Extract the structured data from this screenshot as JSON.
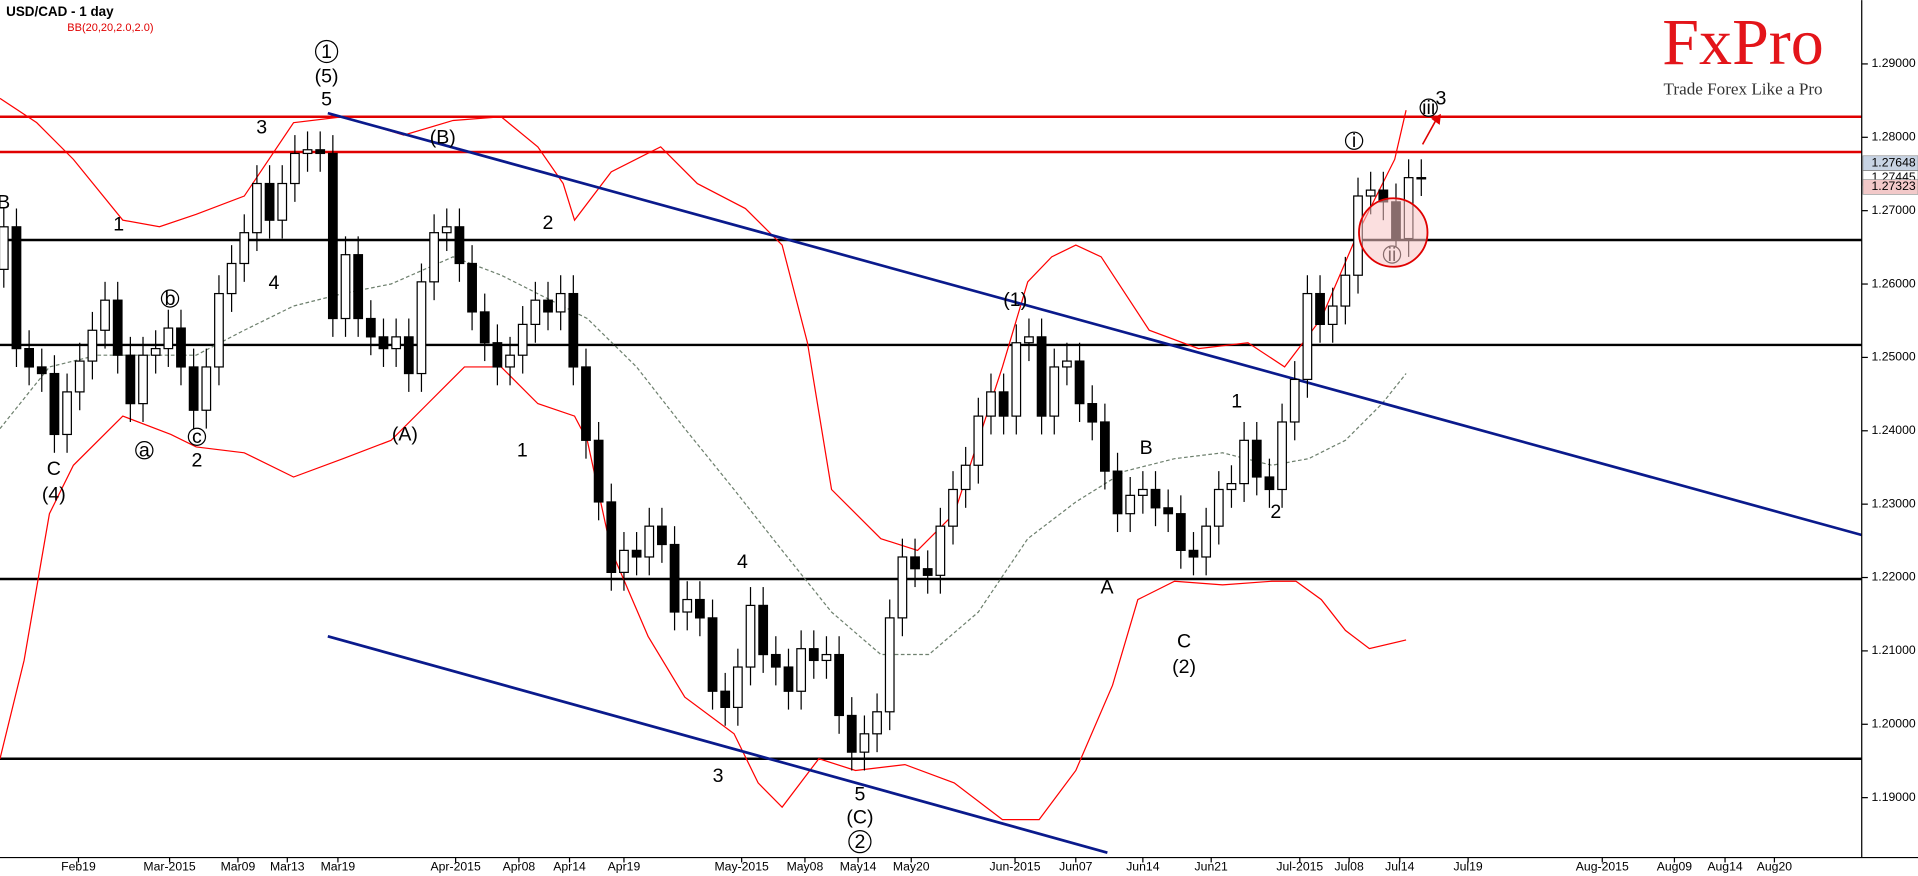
{
  "chart_data": {
    "type": "candlestick",
    "title": "USD/CAD - 1 day",
    "subtitle": "BB(20,20,2.0,2.0)",
    "logo": "FxPro",
    "tagline": "Trade Forex Like a Pro",
    "up_color": "#ffffff",
    "down_color": "#000000",
    "open": [
      1.262,
      1.2678,
      1.2512,
      1.2487,
      1.2478,
      1.2395,
      1.2453,
      1.2495,
      1.2537,
      1.2578,
      1.2503,
      1.2437,
      1.2503,
      1.2512,
      1.254,
      1.2487,
      1.2428,
      1.2487,
      1.2587,
      1.2628,
      1.267,
      1.2737,
      1.2687,
      1.2737,
      1.2778,
      1.2783,
      1.2778,
      1.2553,
      1.264,
      1.2553,
      1.2528,
      1.2512,
      1.2528,
      1.2478,
      1.2603,
      1.267,
      1.2678,
      1.2628,
      1.2562,
      1.252,
      1.2487,
      1.2503,
      1.2545,
      1.2578,
      1.2562,
      1.2587,
      1.2487,
      1.2387,
      1.2303,
      1.2207,
      1.2237,
      1.2228,
      1.227,
      1.2245,
      1.2153,
      1.217,
      1.2145,
      1.2045,
      1.2023,
      1.2078,
      1.2162,
      1.2095,
      1.2078,
      1.2045,
      1.2103,
      1.2087,
      1.2095,
      1.2012,
      1.1962,
      1.1987,
      1.2017,
      1.2145,
      1.2228,
      1.2212,
      1.2203,
      1.227,
      1.232,
      1.2353,
      1.242,
      1.2453,
      1.242,
      1.252,
      1.2528,
      1.242,
      1.2487,
      1.2495,
      1.2437,
      1.2412,
      1.2345,
      1.2287,
      1.2312,
      1.232,
      1.2295,
      1.2287,
      1.2237,
      1.2228,
      1.227,
      1.232,
      1.2328,
      1.2387,
      1.2337,
      1.232,
      1.2412,
      1.247,
      1.2587,
      1.2545,
      1.257,
      1.2612,
      1.272,
      1.2728,
      1.2712,
      1.2662,
      1.2745
    ],
    "high": [
      1.2703,
      1.2703,
      1.2537,
      1.2512,
      1.2503,
      1.2478,
      1.252,
      1.2562,
      1.2603,
      1.2603,
      1.2528,
      1.2528,
      1.2537,
      1.2565,
      1.2565,
      1.2512,
      1.2512,
      1.2612,
      1.2653,
      1.2695,
      1.2762,
      1.2762,
      1.2762,
      1.2803,
      1.2808,
      1.2808,
      1.2803,
      1.2665,
      1.2665,
      1.2578,
      1.2553,
      1.2553,
      1.2553,
      1.2628,
      1.2695,
      1.2703,
      1.2703,
      1.2653,
      1.2587,
      1.2545,
      1.2528,
      1.257,
      1.2603,
      1.2603,
      1.2612,
      1.2612,
      1.2512,
      1.2412,
      1.2328,
      1.2262,
      1.2262,
      1.2295,
      1.2295,
      1.227,
      1.2195,
      1.2195,
      1.217,
      1.207,
      1.2103,
      1.2187,
      1.2187,
      1.212,
      1.2103,
      1.2128,
      1.2128,
      1.212,
      1.212,
      1.2037,
      1.2012,
      1.2042,
      1.217,
      1.2253,
      1.2253,
      1.2237,
      1.2295,
      1.2345,
      1.2378,
      1.2445,
      1.2478,
      1.2478,
      1.2545,
      1.2553,
      1.2553,
      1.2512,
      1.252,
      1.252,
      1.2462,
      1.2437,
      1.237,
      1.2337,
      1.2345,
      1.2345,
      1.232,
      1.2312,
      1.2262,
      1.2295,
      1.2345,
      1.2353,
      1.2412,
      1.2412,
      1.2362,
      1.2437,
      1.2495,
      1.2612,
      1.2612,
      1.2595,
      1.2637,
      1.2745,
      1.2753,
      1.2753,
      1.2737,
      1.277,
      1.277
    ],
    "low": [
      1.2595,
      1.2487,
      1.2462,
      1.2453,
      1.237,
      1.237,
      1.2428,
      1.247,
      1.2512,
      1.2478,
      1.2412,
      1.2412,
      1.2478,
      1.2487,
      1.2462,
      1.2403,
      1.2403,
      1.2462,
      1.2562,
      1.2603,
      1.2645,
      1.2662,
      1.2662,
      1.2712,
      1.2753,
      1.2753,
      1.2528,
      1.2528,
      1.2528,
      1.2503,
      1.2487,
      1.2487,
      1.2453,
      1.2453,
      1.2578,
      1.2645,
      1.2603,
      1.2537,
      1.2495,
      1.2462,
      1.2462,
      1.2478,
      1.252,
      1.2537,
      1.2537,
      1.2462,
      1.2362,
      1.2278,
      1.2182,
      1.2182,
      1.2203,
      1.2203,
      1.222,
      1.2128,
      1.2128,
      1.212,
      1.202,
      1.1998,
      1.1998,
      1.2053,
      1.207,
      1.2053,
      1.202,
      1.202,
      1.2062,
      1.2062,
      1.1987,
      1.1937,
      1.1937,
      1.1962,
      1.1992,
      1.212,
      1.2187,
      1.2178,
      1.2178,
      1.2245,
      1.2295,
      1.2328,
      1.2395,
      1.2395,
      1.2395,
      1.2495,
      1.2395,
      1.2395,
      1.2462,
      1.2412,
      1.2387,
      1.232,
      1.2262,
      1.2262,
      1.2287,
      1.227,
      1.2262,
      1.2212,
      1.2203,
      1.2203,
      1.2245,
      1.2295,
      1.2303,
      1.2312,
      1.2295,
      1.2295,
      1.2387,
      1.2445,
      1.252,
      1.252,
      1.2545,
      1.2587,
      1.2695,
      1.2687,
      1.2637,
      1.2637,
      1.272
    ],
    "close": [
      1.2678,
      1.2512,
      1.2487,
      1.2478,
      1.2395,
      1.2453,
      1.2495,
      1.2537,
      1.2578,
      1.2503,
      1.2437,
      1.2503,
      1.2512,
      1.254,
      1.2487,
      1.2428,
      1.2487,
      1.2587,
      1.2628,
      1.267,
      1.2737,
      1.2687,
      1.2737,
      1.2778,
      1.2783,
      1.2778,
      1.2553,
      1.264,
      1.2553,
      1.2528,
      1.2512,
      1.2528,
      1.2478,
      1.2603,
      1.267,
      1.2678,
      1.2628,
      1.2562,
      1.252,
      1.2487,
      1.2503,
      1.2545,
      1.2578,
      1.2562,
      1.2587,
      1.2487,
      1.2387,
      1.2303,
      1.2207,
      1.2237,
      1.2228,
      1.227,
      1.2245,
      1.2153,
      1.217,
      1.2145,
      1.2045,
      1.2023,
      1.2078,
      1.2162,
      1.2095,
      1.2078,
      1.2045,
      1.2103,
      1.2087,
      1.2095,
      1.2012,
      1.1962,
      1.1987,
      1.2017,
      1.2145,
      1.2228,
      1.2212,
      1.2203,
      1.227,
      1.232,
      1.2353,
      1.242,
      1.2453,
      1.242,
      1.252,
      1.2528,
      1.242,
      1.2487,
      1.2495,
      1.2437,
      1.2412,
      1.2345,
      1.2287,
      1.2312,
      1.232,
      1.2295,
      1.2287,
      1.2237,
      1.2228,
      1.227,
      1.232,
      1.2328,
      1.2387,
      1.2337,
      1.232,
      1.2412,
      1.247,
      1.2587,
      1.2545,
      1.257,
      1.2612,
      1.272,
      1.2728,
      1.2712,
      1.2662,
      1.2745,
      1.27445
    ],
    "bands": [
      {
        "color": "#ff0000",
        "dashed": false,
        "x": [
          -0.3,
          2.6,
          5.5,
          9.4,
          12.3,
          15.2,
          19.0,
          22.9,
          26.8,
          31.6,
          35.5,
          39.3,
          42.2,
          44.2,
          45.1,
          48.0,
          51.9,
          54.8,
          58.6,
          61.5,
          63.5,
          65.4,
          69.3,
          72.2,
          75.1,
          78.9,
          80.9,
          82.8,
          84.7,
          86.7,
          90.5,
          94.4,
          98.3,
          101.2,
          104.1,
          107.0,
          109.9,
          110.8
        ],
        "values": [
          1.2853,
          1.282,
          1.277,
          1.2687,
          1.2678,
          1.2695,
          1.272,
          1.282,
          1.2828,
          1.2803,
          1.2823,
          1.2828,
          1.2787,
          1.2737,
          1.2687,
          1.2753,
          1.2787,
          1.2737,
          1.2703,
          1.2653,
          1.252,
          1.232,
          1.2253,
          1.2237,
          1.2287,
          1.2487,
          1.2603,
          1.2637,
          1.2653,
          1.2637,
          1.2537,
          1.2512,
          1.252,
          1.2487,
          1.2553,
          1.267,
          1.277,
          1.2837
        ]
      },
      {
        "color": "#ff0000",
        "dashed": false,
        "x": [
          -0.3,
          1.6,
          3.6,
          5.5,
          9.4,
          13.2,
          15.2,
          19.0,
          22.9,
          26.8,
          30.6,
          33.5,
          36.4,
          39.3,
          42.2,
          45.1,
          46.1,
          48.0,
          50.9,
          53.8,
          57.7,
          59.6,
          61.5,
          64.4,
          67.3,
          71.2,
          75.1,
          78.9,
          81.8,
          84.7,
          87.6,
          89.6,
          92.5,
          96.3,
          100.2,
          102.1,
          104.1,
          106.0,
          107.9,
          110.8
        ],
        "values": [
          1.1953,
          1.2087,
          1.2287,
          1.2353,
          1.242,
          1.2395,
          1.2378,
          1.237,
          1.2337,
          1.2362,
          1.2387,
          1.2437,
          1.2487,
          1.2487,
          1.2437,
          1.242,
          1.2387,
          1.2237,
          1.212,
          1.2037,
          1.1987,
          1.192,
          1.1887,
          1.1953,
          1.1937,
          1.1945,
          1.192,
          1.187,
          1.187,
          1.1937,
          1.2053,
          1.217,
          1.2195,
          1.219,
          1.2195,
          1.2195,
          1.217,
          1.2128,
          1.2103,
          1.2115
        ]
      },
      {
        "color": "#6e806e",
        "dashed": true,
        "x": [
          -0.3,
          3.6,
          7.4,
          11.3,
          15.2,
          19.0,
          22.9,
          26.8,
          30.6,
          35.5,
          39.3,
          43.2,
          46.1,
          50.0,
          53.8,
          57.7,
          61.5,
          65.4,
          69.3,
          73.1,
          77.0,
          80.9,
          84.7,
          88.6,
          92.5,
          96.3,
          100.2,
          103.1,
          106.0,
          108.9,
          110.8
        ],
        "values": [
          1.2403,
          1.2487,
          1.2503,
          1.2503,
          1.2503,
          1.2537,
          1.257,
          1.2587,
          1.26,
          1.2637,
          1.2612,
          1.2578,
          1.2553,
          1.2487,
          1.2403,
          1.232,
          1.2237,
          1.2153,
          1.2095,
          1.2095,
          1.2153,
          1.2253,
          1.2303,
          1.2345,
          1.2362,
          1.237,
          1.2353,
          1.2362,
          1.2387,
          1.2437,
          1.2478
        ]
      }
    ],
    "levels": [
      {
        "value": 1.2828,
        "color": "#e00000"
      },
      {
        "value": 1.278,
        "color": "#e00000"
      },
      {
        "value": 1.266,
        "color": "#000000"
      },
      {
        "value": 1.2517,
        "color": "#000000"
      },
      {
        "value": 1.2198,
        "color": "#000000"
      },
      {
        "value": 1.1953,
        "color": "#000000"
      }
    ],
    "trendlines": [
      {
        "x": [
          25.6,
          146.8
        ],
        "values": [
          1.2833,
          1.2258
        ],
        "color": "#0a1a8c"
      },
      {
        "x": [
          25.6,
          87.2
        ],
        "values": [
          1.212,
          1.1825
        ],
        "color": "#0a1a8c"
      }
    ],
    "annotations": [
      {
        "label": "B",
        "circled": false
      },
      {
        "label": "1",
        "circled": false
      },
      {
        "label": "C",
        "circled": false
      },
      {
        "label": "(4)",
        "circled": false
      },
      {
        "label": "a",
        "circled": true
      },
      {
        "label": "b",
        "circled": true
      },
      {
        "label": "c",
        "circled": true
      },
      {
        "label": "2",
        "circled": false
      },
      {
        "label": "3",
        "circled": false
      },
      {
        "label": "4",
        "circled": false
      },
      {
        "label": "1",
        "circled": true
      },
      {
        "label": "(5)",
        "circled": false
      },
      {
        "label": "5",
        "circled": false
      },
      {
        "label": "(B)",
        "circled": false
      },
      {
        "label": "(A)",
        "circled": false
      },
      {
        "label": "2",
        "circled": false
      },
      {
        "label": "1",
        "circled": false
      },
      {
        "label": "4",
        "circled": false
      },
      {
        "label": "3",
        "circled": false
      },
      {
        "label": "5",
        "circled": false
      },
      {
        "label": "(C)",
        "circled": false
      },
      {
        "label": "2",
        "circled": true
      },
      {
        "label": "(1)",
        "circled": false
      },
      {
        "label": "A",
        "circled": false
      },
      {
        "label": "B",
        "circled": false
      },
      {
        "label": "C",
        "circled": false
      },
      {
        "label": "(2)",
        "circled": false
      },
      {
        "label": "1",
        "circled": false
      },
      {
        "label": "2",
        "circled": false
      },
      {
        "label": "i",
        "circled": true
      },
      {
        "label": "ii",
        "circled": true
      },
      {
        "label": "iii",
        "circled": true
      },
      {
        "label": "3",
        "circled": false
      }
    ],
    "price_tags": [
      1.27648,
      1.27445,
      1.27323
    ],
    "price_tag_colors": [
      "#c7d3e3",
      "#ffffff",
      "#f2c9c9"
    ],
    "xlim": [
      -0.3,
      146.8
    ],
    "ylim": [
      1.182,
      1.2987
    ],
    "xticks": [
      {
        "value": 5.9,
        "label": "Feb19"
      },
      {
        "value": 13.1,
        "label": "Mar-2015"
      },
      {
        "value": 18.5,
        "label": "Mar09"
      },
      {
        "value": 22.4,
        "label": "Mar13"
      },
      {
        "value": 26.4,
        "label": "Mar19"
      },
      {
        "value": 35.7,
        "label": "Apr-2015"
      },
      {
        "value": 40.7,
        "label": "Apr08"
      },
      {
        "value": 44.7,
        "label": "Apr14"
      },
      {
        "value": 49.0,
        "label": "Apr19"
      },
      {
        "value": 58.3,
        "label": "May-2015"
      },
      {
        "value": 63.3,
        "label": "May08"
      },
      {
        "value": 67.5,
        "label": "May14"
      },
      {
        "value": 71.7,
        "label": "May20"
      },
      {
        "value": 79.9,
        "label": "Jun-2015"
      },
      {
        "value": 84.7,
        "label": "Jun07"
      },
      {
        "value": 90.0,
        "label": "Jun14"
      },
      {
        "value": 95.4,
        "label": "Jun21"
      },
      {
        "value": 102.4,
        "label": "Jul-2015"
      },
      {
        "value": 106.3,
        "label": "Jul08"
      },
      {
        "value": 110.3,
        "label": "Jul14"
      },
      {
        "value": 115.7,
        "label": "Jul19"
      },
      {
        "value": 126.3,
        "label": "Aug-2015"
      },
      {
        "value": 132.0,
        "label": "Aug09"
      },
      {
        "value": 136.0,
        "label": "Aug14"
      },
      {
        "value": 139.9,
        "label": "Aug20"
      }
    ],
    "yticks": [
      {
        "value": 1.29,
        "label": "1.29000"
      },
      {
        "value": 1.28,
        "label": "1.28000"
      },
      {
        "value": 1.27,
        "label": "1.27000"
      },
      {
        "value": 1.26,
        "label": "1.26000"
      },
      {
        "value": 1.25,
        "label": "1.25000"
      },
      {
        "value": 1.24,
        "label": "1.24000"
      },
      {
        "value": 1.23,
        "label": "1.23000"
      },
      {
        "value": 1.22,
        "label": "1.22000"
      },
      {
        "value": 1.21,
        "label": "1.21000"
      },
      {
        "value": 1.2,
        "label": "1.20000"
      },
      {
        "value": 1.19,
        "label": "1.19000"
      }
    ],
    "grid": true
  }
}
